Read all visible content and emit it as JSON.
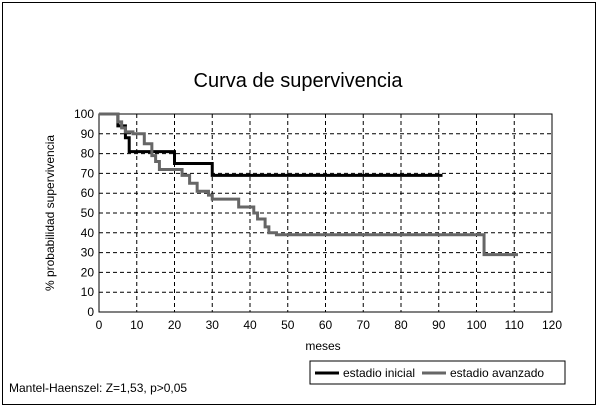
{
  "chart_data": {
    "type": "line",
    "step": true,
    "title": "Curva de supervivencia",
    "xlabel": "meses",
    "ylabel": "% probabilidad supervivencia",
    "xlim": [
      0,
      120
    ],
    "ylim": [
      0,
      100
    ],
    "xticks": [
      0,
      10,
      20,
      30,
      40,
      50,
      60,
      70,
      80,
      90,
      100,
      110,
      120
    ],
    "yticks": [
      0,
      10,
      20,
      30,
      40,
      50,
      60,
      70,
      80,
      90,
      100
    ],
    "grid": true,
    "legend_position": "bottom-right",
    "series": [
      {
        "name": "estadio inicial",
        "color": "#000000",
        "x": [
          0,
          4,
          5,
          6,
          7,
          8,
          20,
          30,
          91
        ],
        "y": [
          100,
          100,
          94,
          94,
          88,
          81,
          75,
          69,
          69
        ]
      },
      {
        "name": "estadio avanzado",
        "color": "#666666",
        "x": [
          0,
          4,
          5,
          6,
          7,
          9,
          12,
          14,
          15,
          16,
          22,
          24,
          26,
          29,
          30,
          37,
          41,
          42,
          44,
          45,
          47,
          102,
          111
        ],
        "y": [
          100,
          100,
          96,
          93,
          91,
          90,
          85,
          79,
          76,
          72,
          69,
          65,
          61,
          59,
          57,
          53,
          50,
          47,
          43,
          40,
          39,
          29,
          29
        ]
      }
    ],
    "annotation": "Mantel-Haenszel: Z=1,53, p>0,05"
  }
}
